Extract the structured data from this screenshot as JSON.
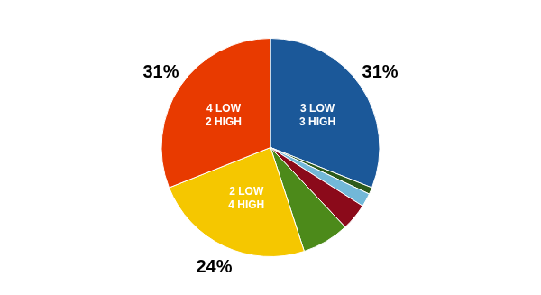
{
  "chart_data": {
    "type": "pie",
    "categories": [
      "3 LOW\n3 HIGH",
      null,
      null,
      null,
      null,
      "2 LOW\n4 HIGH",
      "4 LOW\n2 HIGH"
    ],
    "values": [
      31.0,
      1.0,
      2.0,
      4.0,
      7.0,
      24.0,
      31.0
    ],
    "value_labels": [
      "31%",
      null,
      null,
      null,
      null,
      "24%",
      "31%"
    ],
    "colors": [
      "#1b5899",
      "#2d5a1b",
      "#72b8d8",
      "#8b0a1a",
      "#4c8a1a",
      "#f5c700",
      "#e83a00"
    ],
    "data_labels": true,
    "legend": false
  }
}
